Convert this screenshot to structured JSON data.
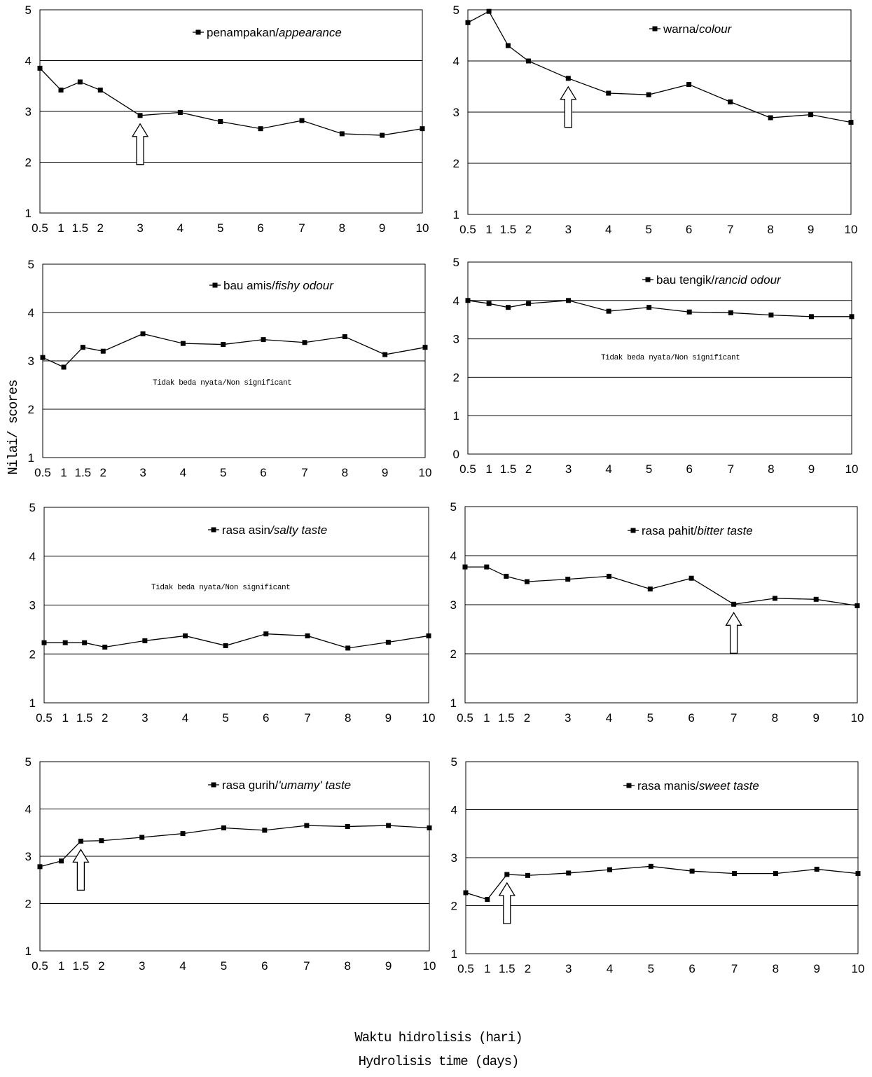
{
  "figure": {
    "ylabel": "Nilai/ scores",
    "xlabel_line1": "Waktu hidrolisis (hari)",
    "xlabel_line2": "Hydrolisis time (days)"
  },
  "chart_data": [
    {
      "type": "line",
      "series": [
        {
          "name": "penampakan/appearance",
          "name_plain": "penampakan/",
          "name_italic": "appearance",
          "x": [
            0.5,
            1,
            1.5,
            2,
            3,
            4,
            5,
            6,
            7,
            8,
            9,
            10
          ],
          "values": [
            3.85,
            3.42,
            3.58,
            3.42,
            2.92,
            2.98,
            2.8,
            2.66,
            2.82,
            2.56,
            2.53,
            2.66
          ]
        }
      ],
      "xticks": [
        "0.5",
        "1",
        "1.5",
        "2",
        "3",
        "4",
        "5",
        "6",
        "7",
        "8",
        "9",
        "10"
      ],
      "ylim": [
        1,
        5
      ],
      "yticks": [
        1,
        2,
        3,
        4,
        5
      ],
      "arrow_x": 3,
      "annotation": "",
      "grid": true,
      "legend_position": "top-right"
    },
    {
      "type": "line",
      "series": [
        {
          "name": "warna/colour",
          "name_plain": "warna/",
          "name_italic": "colour",
          "x": [
            0.5,
            1,
            1.5,
            2,
            3,
            4,
            5,
            6,
            7,
            8,
            9,
            10
          ],
          "values": [
            4.75,
            4.97,
            4.3,
            4.0,
            3.66,
            3.37,
            3.34,
            3.54,
            3.2,
            2.89,
            2.95,
            2.8
          ]
        }
      ],
      "xticks": [
        "0.5",
        "1",
        "1.5",
        "2",
        "3",
        "4",
        "5",
        "6",
        "7",
        "8",
        "9",
        "10"
      ],
      "ylim": [
        1,
        5
      ],
      "yticks": [
        1,
        2,
        3,
        4,
        5
      ],
      "arrow_x": 3,
      "annotation": "",
      "grid": true,
      "legend_position": "top-right"
    },
    {
      "type": "line",
      "series": [
        {
          "name": "bau amis/fishy odour",
          "name_plain": "bau amis/",
          "name_italic": "fishy odour",
          "x": [
            0.5,
            1,
            1.5,
            2,
            3,
            4,
            5,
            6,
            7,
            8,
            9,
            10
          ],
          "values": [
            3.07,
            2.87,
            3.28,
            3.2,
            3.56,
            3.36,
            3.34,
            3.44,
            3.38,
            3.5,
            3.13,
            3.28
          ]
        }
      ],
      "xticks": [
        "0.5",
        "1",
        "1.5",
        "2",
        "3",
        "4",
        "5",
        "6",
        "7",
        "8",
        "9",
        "10"
      ],
      "ylim": [
        1,
        5
      ],
      "yticks": [
        1,
        2,
        3,
        4,
        5
      ],
      "arrow_x": null,
      "annotation": "Tidak beda nyata/Non significant",
      "grid": true,
      "legend_position": "top-right"
    },
    {
      "type": "line",
      "series": [
        {
          "name": "bau tengik/rancid odour",
          "name_plain": "bau tengik/",
          "name_italic": "rancid odour",
          "x": [
            0.5,
            1,
            1.5,
            2,
            3,
            4,
            5,
            6,
            7,
            8,
            9,
            10
          ],
          "values": [
            4.0,
            3.92,
            3.82,
            3.92,
            4.0,
            3.72,
            3.82,
            3.7,
            3.68,
            3.62,
            3.58,
            3.58
          ]
        }
      ],
      "xticks": [
        "0.5",
        "1",
        "1.5",
        "2",
        "3",
        "4",
        "5",
        "6",
        "7",
        "8",
        "9",
        "10"
      ],
      "ylim": [
        0,
        5
      ],
      "yticks": [
        0,
        1,
        2,
        3,
        4,
        5
      ],
      "arrow_x": null,
      "annotation": "Tidak beda nyata/Non significant",
      "grid": true,
      "legend_position": "top-right"
    },
    {
      "type": "line",
      "series": [
        {
          "name": "rasa asin/salty taste",
          "name_plain": "rasa asin",
          "name_italic": "/salty taste",
          "x": [
            0.5,
            1,
            1.5,
            2,
            3,
            4,
            5,
            6,
            7,
            8,
            9,
            10
          ],
          "values": [
            2.23,
            2.23,
            2.23,
            2.14,
            2.27,
            2.37,
            2.17,
            2.41,
            2.37,
            2.12,
            2.24,
            2.37
          ]
        }
      ],
      "xticks": [
        "0.5",
        "1",
        "1.5",
        "2",
        "3",
        "4",
        "5",
        "6",
        "7",
        "8",
        "9",
        "10"
      ],
      "ylim": [
        1,
        5
      ],
      "yticks": [
        1,
        2,
        3,
        4,
        5
      ],
      "arrow_x": null,
      "annotation": "Tidak beda nyata/Non significant",
      "grid": true,
      "legend_position": "top-right"
    },
    {
      "type": "line",
      "series": [
        {
          "name": "rasa pahit/bitter taste",
          "name_plain": "rasa pahit/",
          "name_italic": "bitter taste",
          "x": [
            0.5,
            1,
            1.5,
            2,
            3,
            4,
            5,
            6,
            7,
            8,
            9,
            10
          ],
          "values": [
            3.77,
            3.77,
            3.58,
            3.47,
            3.52,
            3.58,
            3.32,
            3.54,
            3.01,
            3.13,
            3.11,
            2.98
          ]
        }
      ],
      "xticks": [
        "0.5",
        "1",
        "1.5",
        "2",
        "3",
        "4",
        "5",
        "6",
        "7",
        "8",
        "9",
        "10"
      ],
      "ylim": [
        1,
        5
      ],
      "yticks": [
        1,
        2,
        3,
        4,
        5
      ],
      "arrow_x": 7,
      "annotation": "",
      "grid": true,
      "legend_position": "top-right"
    },
    {
      "type": "line",
      "series": [
        {
          "name": "rasa gurih/'umamy' taste",
          "name_plain": "rasa gurih/",
          "name_italic": "'umamy' taste",
          "x": [
            0.5,
            1,
            1.5,
            2,
            3,
            4,
            5,
            6,
            7,
            8,
            9,
            10
          ],
          "values": [
            2.78,
            2.9,
            3.32,
            3.33,
            3.4,
            3.48,
            3.6,
            3.55,
            3.65,
            3.63,
            3.65,
            3.6
          ]
        }
      ],
      "xticks": [
        "0.5",
        "1",
        "1.5",
        "2",
        "3",
        "4",
        "5",
        "6",
        "7",
        "8",
        "9",
        "10"
      ],
      "ylim": [
        1,
        5
      ],
      "yticks": [
        1,
        2,
        3,
        4,
        5
      ],
      "arrow_x": 1.5,
      "annotation": "",
      "grid": true,
      "legend_position": "top-right"
    },
    {
      "type": "line",
      "series": [
        {
          "name": "rasa manis/sweet taste",
          "name_plain": "rasa manis/",
          "name_italic": "sweet taste",
          "x": [
            0.5,
            1,
            1.5,
            2,
            3,
            4,
            5,
            6,
            7,
            8,
            9,
            10
          ],
          "values": [
            2.27,
            2.13,
            2.65,
            2.63,
            2.68,
            2.75,
            2.82,
            2.72,
            2.67,
            2.67,
            2.76,
            2.67
          ]
        }
      ],
      "xticks": [
        "0.5",
        "1",
        "1.5",
        "2",
        "3",
        "4",
        "5",
        "6",
        "7",
        "8",
        "9",
        "10"
      ],
      "ylim": [
        1,
        5
      ],
      "yticks": [
        1,
        2,
        3,
        4,
        5
      ],
      "arrow_x": 1.5,
      "annotation": "",
      "grid": true,
      "legend_position": "top-right"
    }
  ]
}
